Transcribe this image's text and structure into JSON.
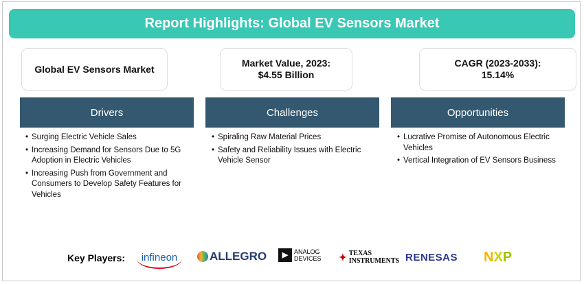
{
  "title": "Report Highlights: Global EV Sensors Market",
  "boxes": [
    {
      "line1": "Global EV Sensors Market"
    },
    {
      "line1": "Market Value, 2023:",
      "line2": "$4.55 Billion"
    },
    {
      "line1": "CAGR (2023-2033):",
      "line2": "15.14%"
    }
  ],
  "columns": [
    {
      "header": "Drivers",
      "items": [
        "Surging Electric Vehicle Sales",
        "Increasing Demand for Sensors Due to 5G Adoption in Electric Vehicles",
        "Increasing Push from Government and Consumers to Develop Safety Features for Vehicles"
      ]
    },
    {
      "header": "Challenges",
      "items": [
        "Spiraling Raw Material Prices",
        "Safety and Reliability Issues with Electric Vehicle Sensor"
      ]
    },
    {
      "header": "Opportunities",
      "items": [
        "Lucrative Promise of Autonomous Electric Vehicles",
        "Vertical Integration of EV Sensors Business"
      ]
    }
  ],
  "key_players_label": "Key Players:",
  "logos": [
    "infineon",
    "ALLEGRO",
    "ANALOG DEVICES",
    "TEXAS INSTRUMENTS",
    "RENESAS",
    "NXP"
  ],
  "colors": {
    "banner": "#38c8b4",
    "column_header": "#33586f"
  }
}
